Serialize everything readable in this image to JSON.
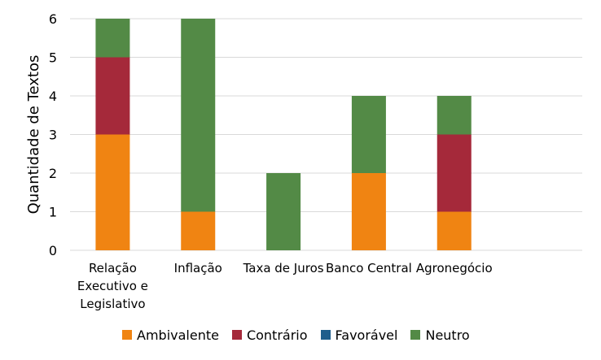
{
  "chart_data": {
    "type": "bar",
    "stacked": true,
    "categories": [
      "Relação Executivo e Legislativo",
      "Inflação",
      "Taxa de Juros",
      "Banco Central",
      "Agronegócio",
      ""
    ],
    "category_lines": [
      [
        "Relação",
        "Executivo e",
        "Legislativo"
      ],
      [
        "Inflação"
      ],
      [
        "Taxa de Juros"
      ],
      [
        "Banco Central"
      ],
      [
        "Agronegócio"
      ],
      []
    ],
    "series": [
      {
        "name": "Ambivalente",
        "color": "#f08412",
        "values": [
          3,
          1,
          0,
          2,
          1,
          0
        ]
      },
      {
        "name": "Contrário",
        "color": "#a5293a",
        "values": [
          2,
          0,
          0,
          0,
          2,
          0
        ]
      },
      {
        "name": "Favorável",
        "color": "#1f5e8c",
        "values": [
          0,
          0,
          0,
          0,
          0,
          0
        ]
      },
      {
        "name": "Neutro",
        "color": "#538a46",
        "values": [
          1,
          5,
          2,
          2,
          1,
          0
        ]
      }
    ],
    "ylabel": "Quantidade de Textos",
    "xlabel": "",
    "ylim": [
      0,
      6
    ],
    "yticks": [
      "0",
      "1",
      "2",
      "3",
      "4",
      "5",
      "6"
    ],
    "grid": true,
    "legend_position": "bottom"
  }
}
